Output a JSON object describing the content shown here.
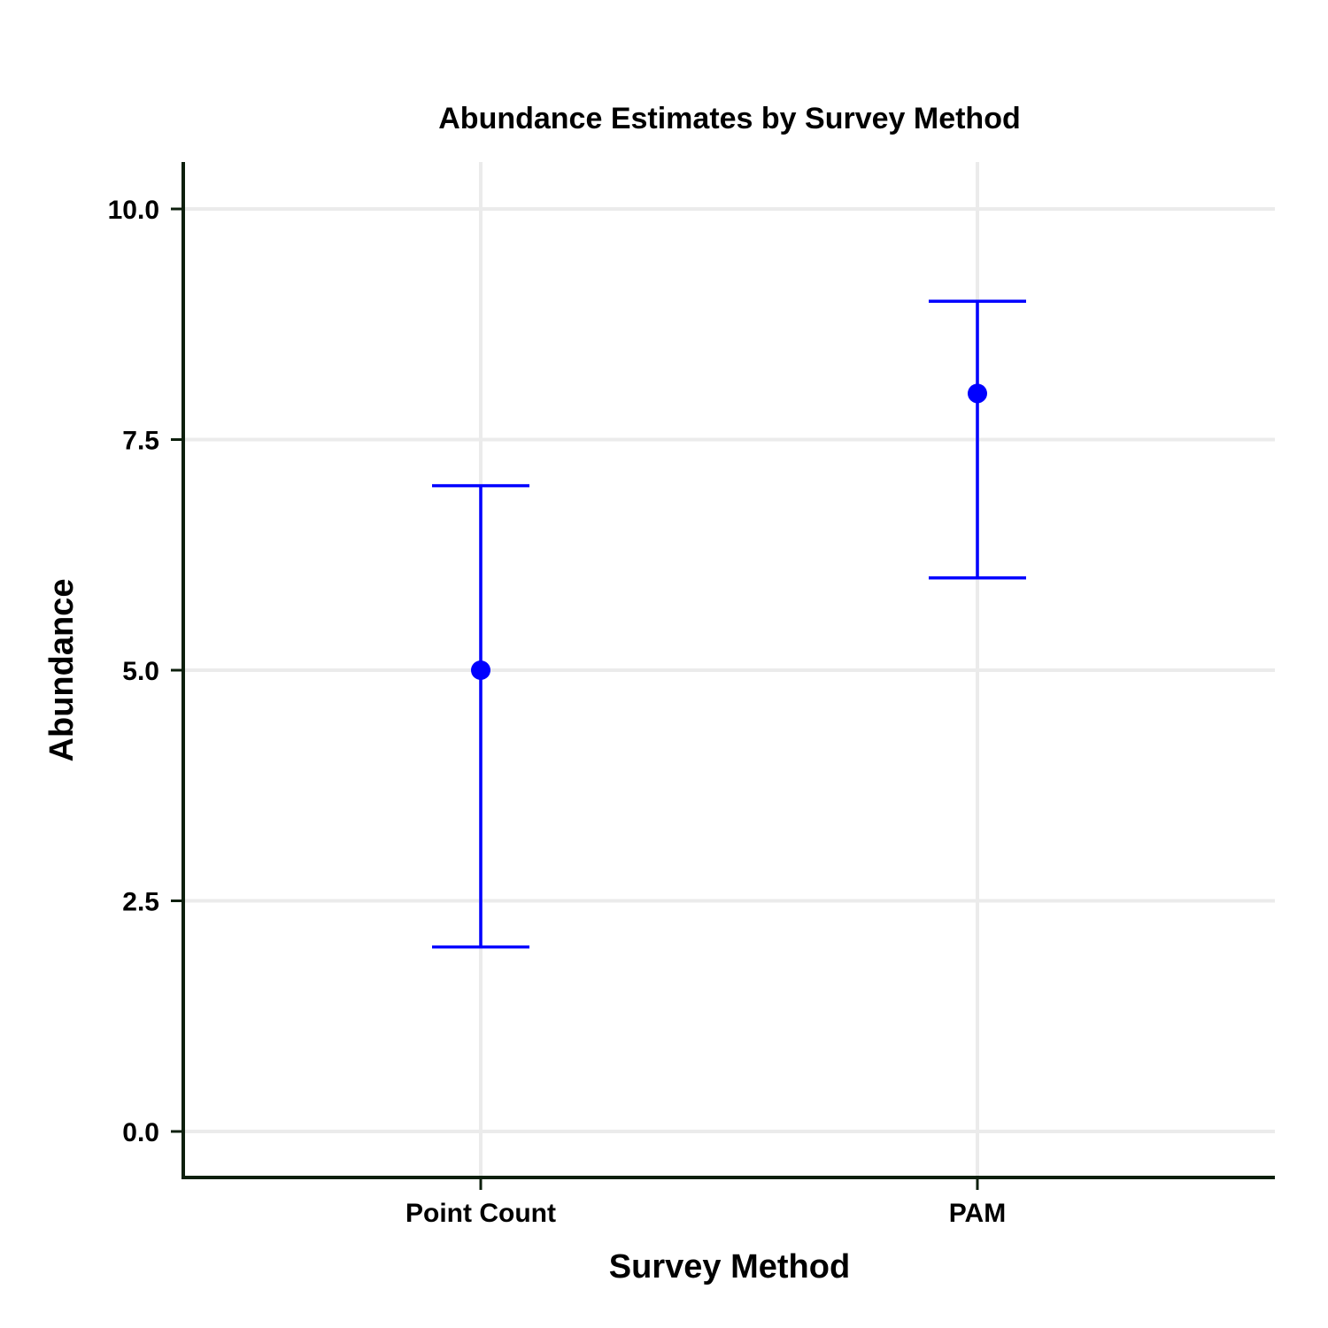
{
  "chart_data": {
    "type": "scatter",
    "title": "Abundance Estimates by Survey Method",
    "xlabel": "Survey Method",
    "ylabel": "Abundance",
    "categories": [
      "Point Count",
      "PAM"
    ],
    "series": [
      {
        "values": [
          5.0,
          8.0
        ],
        "lower": [
          2.0,
          6.0
        ],
        "upper": [
          7.0,
          9.0
        ]
      }
    ],
    "ylim": [
      -0.5,
      10.5
    ],
    "yticks": [
      0.0,
      2.5,
      5.0,
      7.5,
      10.0
    ],
    "ytick_labels": [
      "0.0",
      "2.5",
      "5.0",
      "7.5",
      "10.0"
    ],
    "grid": true,
    "colors": {
      "points": "#0000ff",
      "errorbars": "#0000ff",
      "grid": "#ebebeb",
      "axis": "#0d1f0d"
    }
  }
}
